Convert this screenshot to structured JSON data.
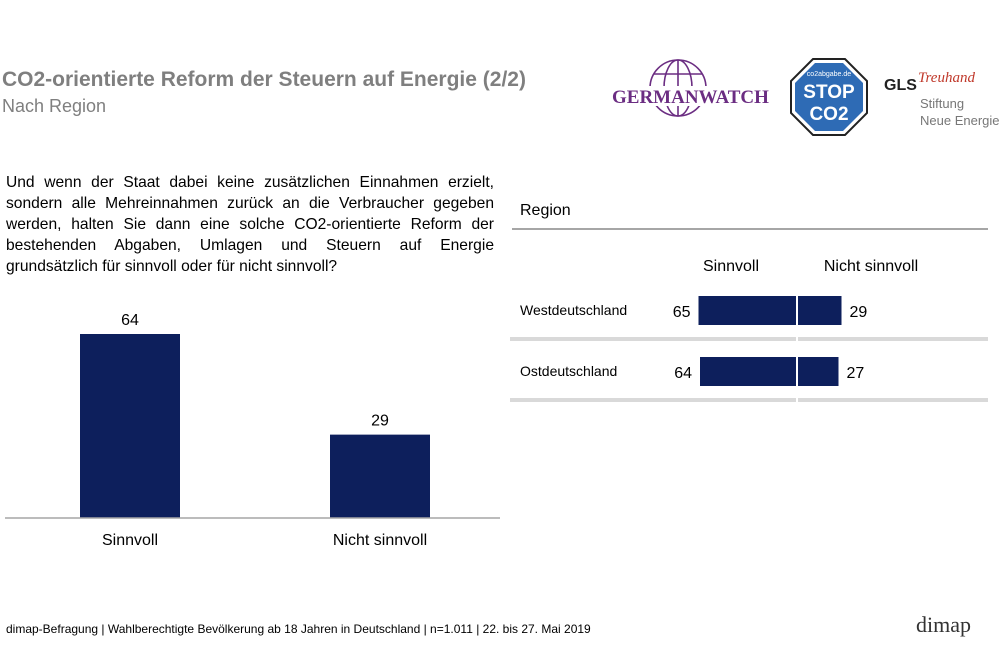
{
  "header": {
    "title": "CO2-orientierte Reform der Steuern auf Energie (2/2)",
    "subtitle": "Nach Region"
  },
  "logos": {
    "germanwatch": "GERMANWATCH",
    "stop_co2_url": "co2abgabe.de",
    "stop_co2_line1": "STOP",
    "stop_co2_line2": "CO2",
    "gls": "GLS",
    "gls_script": "Treuhand",
    "gls_line1": "Stiftung",
    "gls_line2": "Neue Energie",
    "dimap": "dimap"
  },
  "question": "Und wenn der Staat dabei keine zusätzlichen Einnahmen erzielt, sondern alle Mehreinnahmen zurück an die Verbraucher gegeben werden, halten Sie dann eine solche CO2-orientierte Reform der bestehenden Abgaben, Umlagen und Steuern auf Energie grundsätzlich für sinnvoll oder für nicht sinnvoll?",
  "footer": "dimap-Befragung | Wahlberechtigte Bevölkerung ab 18 Jahren in Deutschland | n=1.011 | 22. bis 27. Mai 2019",
  "colors": {
    "bar": "#0d1f5c",
    "title": "#7f7f7f",
    "separator": "#d9d9d9",
    "germanwatch": "#6b2d82",
    "stop": "#2e6bb5"
  },
  "chart_data": [
    {
      "type": "bar",
      "categories": [
        "Sinnvoll",
        "Nicht sinnvoll"
      ],
      "values": [
        64,
        29
      ],
      "ylim": [
        0,
        64
      ],
      "grid": false
    },
    {
      "type": "bar",
      "orientation": "horizontal-diverging",
      "title": "Region",
      "categories": [
        "Westdeutschland",
        "Ostdeutschland"
      ],
      "series": [
        {
          "name": "Sinnvoll",
          "values": [
            65,
            64
          ]
        },
        {
          "name": "Nicht sinnvoll",
          "values": [
            29,
            27
          ]
        }
      ],
      "grid": false
    }
  ]
}
